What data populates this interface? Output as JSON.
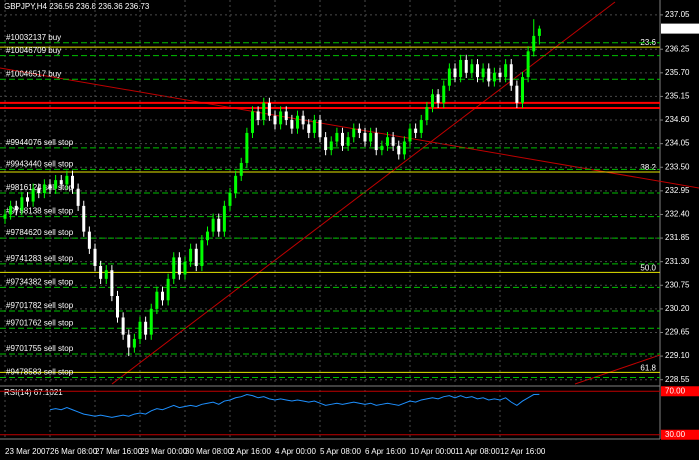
{
  "chart_data": {
    "type": "candlestick",
    "symbol": "GBPJPY,H4",
    "categories": [
      "23 Mar 2007",
      null,
      null,
      null,
      null,
      null,
      null,
      null,
      "26 Mar 08:00",
      null,
      null,
      null,
      null,
      null,
      null,
      null,
      "27 Mar 16:00",
      null,
      null,
      null,
      null,
      null,
      null,
      null,
      "29 Mar 00:00",
      null,
      null,
      null,
      null,
      null,
      null,
      null,
      "30 Mar 08:00",
      null,
      null,
      null,
      null,
      null,
      null,
      null,
      "2 Apr 16:00",
      null,
      null,
      null,
      null,
      null,
      null,
      null,
      "4 Apr 00:00",
      null,
      null,
      null,
      null,
      null,
      null,
      null,
      "5 Apr 08:00",
      null,
      null,
      null,
      null,
      null,
      null,
      null,
      "6 Apr 16:00",
      null,
      null,
      null,
      null,
      null,
      null,
      null,
      "10 Apr 00:00",
      null,
      null,
      null,
      null,
      null,
      null,
      null,
      "11 Apr 08:00",
      null,
      null,
      null,
      null,
      null,
      null,
      null,
      "12 Apr 16:00",
      null,
      null,
      null,
      null,
      null,
      null,
      null
    ],
    "open": [
      232.3,
      232.4,
      232.6,
      232.5,
      232.8,
      232.7,
      233.0,
      232.9,
      233.1,
      233.0,
      233.2,
      233.1,
      233.3,
      233.0,
      232.6,
      232.0,
      231.6,
      231.2,
      230.9,
      231.1,
      230.5,
      230.0,
      229.6,
      229.3,
      229.5,
      229.9,
      229.6,
      230.2,
      230.6,
      230.4,
      230.9,
      231.4,
      231.0,
      231.3,
      231.6,
      231.2,
      231.8,
      232.0,
      232.3,
      232.0,
      232.6,
      232.9,
      233.3,
      233.6,
      234.3,
      234.8,
      234.6,
      235.0,
      234.7,
      234.5,
      234.8,
      234.6,
      234.4,
      234.7,
      234.5,
      234.3,
      234.6,
      234.2,
      233.9,
      234.1,
      234.3,
      234.0,
      234.2,
      234.4,
      234.3,
      234.1,
      234.3,
      233.9,
      234.0,
      234.2,
      234.0,
      233.8,
      234.1,
      234.4,
      234.3,
      234.6,
      234.9,
      235.2,
      235.0,
      235.4,
      235.8,
      235.6,
      236.0,
      235.7,
      235.9,
      235.6,
      235.8,
      235.5,
      235.7,
      235.6,
      235.9,
      235.4,
      235.0,
      235.6,
      236.2,
      236.56
    ],
    "high": [
      232.52,
      232.72,
      232.72,
      232.92,
      232.92,
      233.12,
      233.12,
      233.22,
      233.22,
      233.32,
      233.32,
      233.42,
      233.42,
      233.12,
      232.72,
      232.12,
      231.72,
      231.32,
      231.22,
      231.22,
      230.62,
      230.12,
      229.72,
      229.62,
      230.02,
      230.02,
      230.32,
      230.72,
      230.72,
      231.02,
      231.52,
      231.52,
      231.42,
      231.72,
      231.72,
      231.92,
      232.12,
      232.42,
      232.42,
      232.72,
      233.02,
      233.42,
      233.72,
      234.42,
      234.92,
      234.92,
      235.12,
      235.12,
      234.82,
      234.92,
      234.92,
      234.72,
      234.82,
      234.82,
      234.62,
      234.72,
      234.72,
      234.32,
      234.22,
      234.42,
      234.42,
      234.32,
      234.52,
      234.52,
      234.42,
      234.42,
      234.42,
      234.12,
      234.32,
      234.32,
      234.12,
      234.22,
      234.52,
      234.52,
      234.72,
      235.02,
      235.32,
      235.32,
      235.52,
      235.92,
      235.92,
      236.12,
      236.12,
      236.02,
      236.02,
      235.92,
      235.92,
      235.82,
      235.82,
      236.02,
      236.02,
      235.52,
      235.72,
      236.32,
      236.95,
      236.8
    ],
    "low": [
      232.18,
      232.28,
      232.38,
      232.38,
      232.58,
      232.58,
      232.78,
      232.78,
      232.88,
      232.88,
      232.98,
      232.98,
      232.88,
      232.48,
      231.88,
      231.48,
      231.08,
      230.78,
      230.78,
      230.38,
      229.88,
      229.48,
      229.1,
      229.18,
      229.38,
      229.48,
      229.48,
      230.08,
      230.28,
      230.28,
      230.78,
      230.88,
      230.88,
      231.18,
      231.08,
      231.08,
      231.68,
      231.88,
      231.88,
      231.88,
      232.48,
      232.78,
      233.18,
      233.48,
      234.18,
      234.48,
      234.48,
      234.58,
      234.38,
      234.38,
      234.48,
      234.28,
      234.28,
      234.38,
      234.18,
      234.18,
      234.08,
      233.78,
      233.78,
      233.98,
      233.88,
      233.88,
      234.08,
      234.18,
      233.98,
      233.98,
      233.78,
      233.78,
      233.88,
      233.88,
      233.68,
      233.68,
      233.98,
      234.18,
      234.18,
      234.48,
      234.78,
      234.88,
      234.88,
      235.28,
      235.48,
      235.48,
      235.58,
      235.58,
      235.48,
      235.48,
      235.38,
      235.38,
      235.48,
      235.48,
      235.28,
      234.88,
      234.88,
      235.48,
      236.08,
      236.36
    ],
    "close": [
      232.4,
      232.6,
      232.5,
      232.8,
      232.7,
      233.0,
      232.9,
      233.1,
      233.0,
      233.2,
      233.1,
      233.3,
      233.0,
      232.6,
      232.0,
      231.6,
      231.2,
      230.9,
      231.1,
      230.5,
      230.0,
      229.6,
      229.3,
      229.5,
      229.9,
      229.6,
      230.2,
      230.6,
      230.4,
      230.9,
      231.4,
      231.0,
      231.3,
      231.6,
      231.2,
      231.8,
      232.0,
      232.3,
      232.0,
      232.6,
      232.9,
      233.3,
      233.6,
      234.3,
      234.8,
      234.6,
      235.0,
      234.7,
      234.5,
      234.8,
      234.6,
      234.4,
      234.7,
      234.5,
      234.3,
      234.6,
      234.2,
      233.9,
      234.1,
      234.3,
      234.0,
      234.2,
      234.4,
      234.3,
      234.1,
      234.3,
      233.9,
      234.0,
      234.2,
      234.0,
      233.8,
      234.1,
      234.4,
      234.3,
      234.6,
      234.9,
      235.2,
      235.0,
      235.4,
      235.8,
      235.6,
      236.0,
      235.7,
      235.9,
      235.6,
      235.8,
      235.5,
      235.7,
      235.6,
      235.9,
      235.4,
      235.0,
      235.6,
      236.2,
      236.56,
      236.73
    ],
    "up_color": "#00ff00",
    "down_color": "#ffffff",
    "ylim": [
      228.45,
      237.35
    ],
    "yticks": [
      237.05,
      236.25,
      {
        "value": 235.7,
        "label": "235.70"
      },
      235.15,
      {
        "value": 234.6,
        "label": "234.60"
      },
      234.05,
      {
        "value": 233.5,
        "label": "233.50"
      },
      232.95,
      {
        "value": 232.4,
        "label": "232.40"
      },
      231.85,
      {
        "value": 231.3,
        "label": "231.30"
      },
      230.75,
      {
        "value": 230.2,
        "label": "230.20"
      },
      229.65,
      {
        "value": 229.1,
        "label": "229.10"
      },
      228.55
    ],
    "grid": true,
    "orders": [
      {
        "label": "#10032137 buy",
        "price": 236.4
      },
      {
        "label": "#10046709 buy",
        "price": 236.1
      },
      {
        "label": "#10046517 buy",
        "price": 235.55
      },
      {
        "label": "#9944076 sell stop",
        "price": 233.95
      },
      {
        "label": "#9943440 sell stop",
        "price": 233.45
      },
      {
        "label": "#9816124 sell stop",
        "price": 232.9
      },
      {
        "label": "#9788138 sell stop",
        "price": 232.35
      },
      {
        "label": "#9784620 sell stop",
        "price": 231.85
      },
      {
        "label": "#9741283 sell stop",
        "price": 231.25
      },
      {
        "label": "#9734382 sell stop",
        "price": 230.7
      },
      {
        "label": "#9701782 sell stop",
        "price": 230.15
      },
      {
        "label": "#9701762 sell stop",
        "price": 229.75
      },
      {
        "label": "#9701755 sell stop",
        "price": 229.15
      },
      {
        "label": "#9478583 sell stop",
        "price": 228.6
      }
    ],
    "order_color": "#00c000",
    "fib_levels": [
      {
        "label": "23.6",
        "price": 236.3
      },
      {
        "label": "38.2",
        "price": 233.39
      },
      {
        "label": "50.0",
        "price": 231.05
      },
      {
        "label": "61.8",
        "price": 228.72
      }
    ],
    "fib_color": "#e6e600",
    "red_levels": [
      235.0,
      234.88
    ],
    "rsi": {
      "name": "RSI(14)",
      "color": "#1e90ff",
      "ylim": [
        27,
        73
      ],
      "yticks": [
        {
          "value": 70,
          "label": "70.00"
        },
        {
          "value": 30,
          "label": "30.00"
        }
      ],
      "values": [
        null,
        null,
        null,
        null,
        null,
        null,
        null,
        null,
        53,
        54,
        53,
        55,
        53,
        51,
        49,
        48,
        47,
        48,
        47,
        46,
        47,
        48,
        47,
        49,
        50,
        49,
        52,
        54,
        53,
        55,
        57,
        55,
        56,
        57,
        56,
        58,
        59,
        60,
        58,
        61,
        62,
        64,
        65,
        67,
        66,
        64,
        65,
        63,
        62,
        63,
        62,
        61,
        62,
        61,
        60,
        61,
        59,
        57,
        58,
        59,
        58,
        59,
        60,
        59,
        58,
        59,
        57,
        58,
        59,
        58,
        57,
        59,
        61,
        60,
        62,
        63,
        64,
        63,
        65,
        66,
        64,
        66,
        64,
        65,
        63,
        64,
        62,
        63,
        62,
        64,
        60,
        57,
        61,
        64,
        67,
        67.1021
      ]
    }
  }
}
